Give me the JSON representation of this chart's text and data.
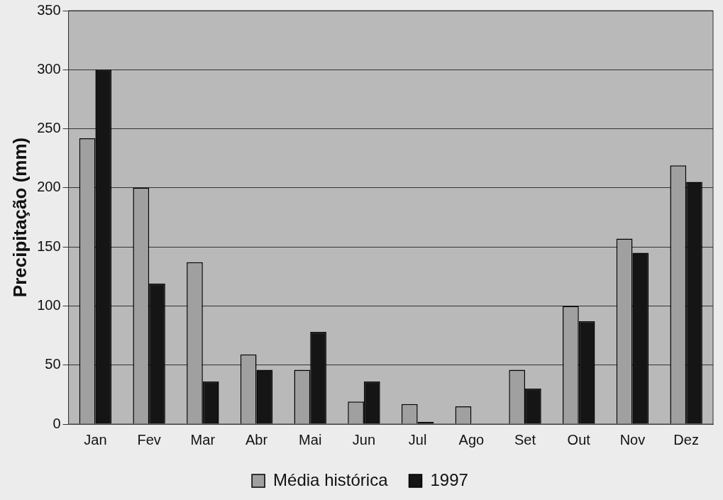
{
  "chart_data": {
    "type": "bar",
    "ylabel": "Precipitação (mm)",
    "categories": [
      "Jan",
      "Fev",
      "Mar",
      "Abr",
      "Mai",
      "Jun",
      "Jul",
      "Ago",
      "Set",
      "Out",
      "Nov",
      "Dez"
    ],
    "series": [
      {
        "name": "Média histórica",
        "color": "#a0a0a0",
        "values": [
          242,
          200,
          137,
          59,
          46,
          19,
          17,
          15,
          46,
          100,
          157,
          219
        ]
      },
      {
        "name": "1997",
        "color": "#151515",
        "values": [
          300,
          119,
          36,
          46,
          78,
          36,
          2,
          0,
          30,
          87,
          145,
          205
        ]
      }
    ],
    "ylim": [
      0,
      350
    ],
    "yticks": [
      0,
      50,
      100,
      150,
      200,
      250,
      300,
      350
    ],
    "grid": "y",
    "legend": "bottom"
  }
}
